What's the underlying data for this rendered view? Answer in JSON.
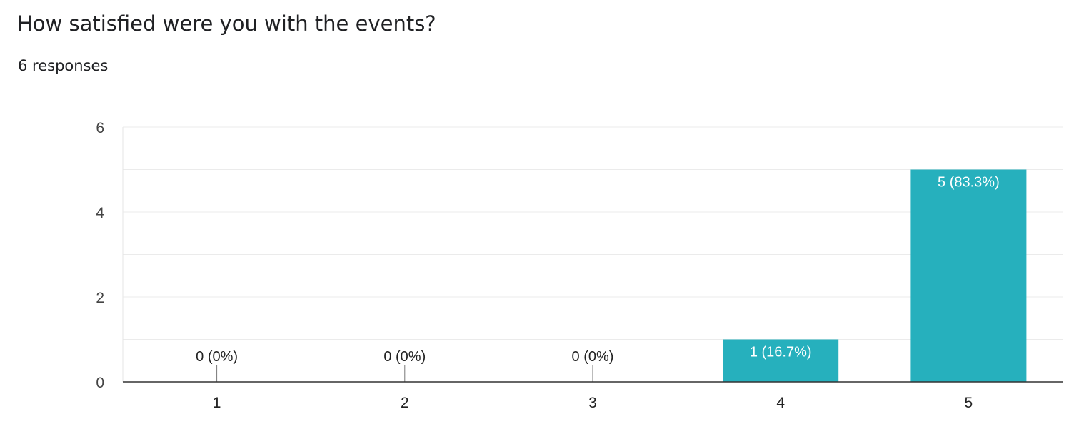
{
  "question": {
    "title": "How satisfied were you with the events?",
    "responses": "6 responses"
  },
  "chart_data": {
    "type": "bar",
    "categories": [
      "1",
      "2",
      "3",
      "4",
      "5"
    ],
    "values": [
      0,
      0,
      0,
      1,
      5
    ],
    "data_labels": [
      "0 (0%)",
      "0 (0%)",
      "0 (0%)",
      "1 (16.7%)",
      "5 (83.3%)"
    ],
    "ylim": [
      0,
      6
    ],
    "yticks": [
      "0",
      "2",
      "4",
      "6"
    ],
    "grid": true,
    "bar_color": "#26b0bd"
  }
}
